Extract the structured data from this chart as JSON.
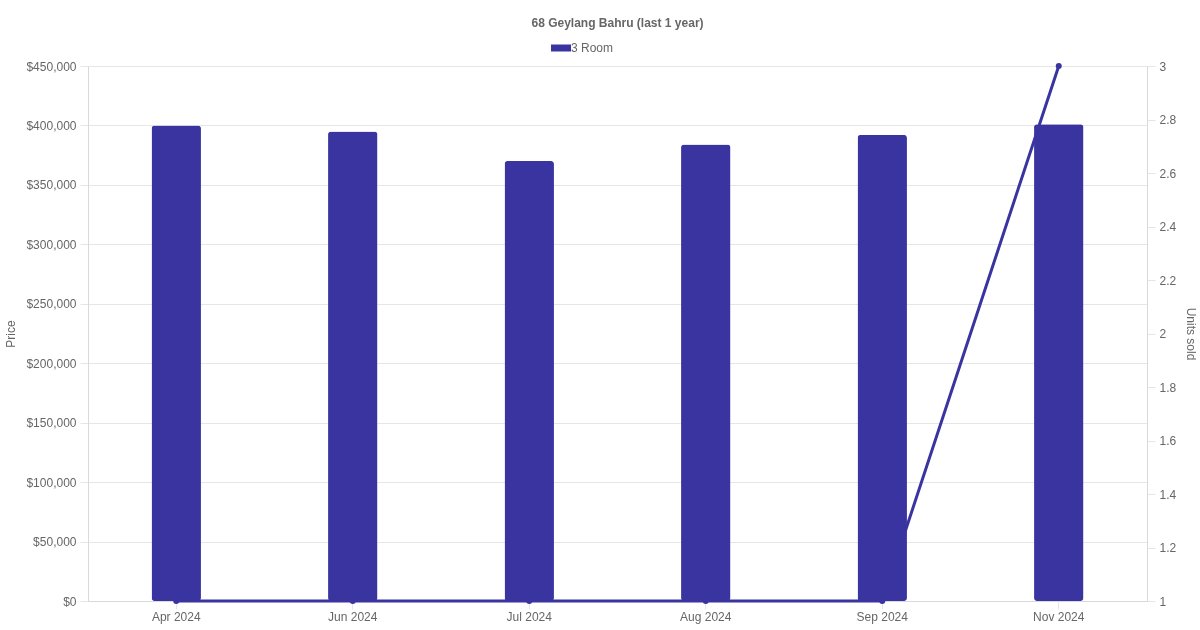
{
  "chart_data": {
    "type": "bar",
    "title": "68 Geylang Bahru (last 1 year)",
    "ylabel": "Price",
    "y2label": "Units sold",
    "categories": [
      "Apr 2024",
      "Jun 2024",
      "Jul 2024",
      "Aug 2024",
      "Sep 2024",
      "Nov 2024"
    ],
    "series": [
      {
        "name": "3 Room",
        "color": "#3934a0",
        "values": [
          400000,
          395000,
          370000,
          384000,
          392000,
          401000
        ]
      },
      {
        "type": "line",
        "axis": "y2",
        "color": "#3934a0",
        "marker": "circle",
        "values": [
          1,
          1,
          1,
          1,
          1,
          3
        ]
      }
    ],
    "ylim": [
      0,
      450000
    ],
    "yticks": [
      {
        "value": 0,
        "label": "$0"
      },
      {
        "value": 50000,
        "label": "$50,000"
      },
      {
        "value": 100000,
        "label": "$100,000"
      },
      {
        "value": 150000,
        "label": "$150,000"
      },
      {
        "value": 200000,
        "label": "$200,000"
      },
      {
        "value": 250000,
        "label": "$250,000"
      },
      {
        "value": 300000,
        "label": "$300,000"
      },
      {
        "value": 350000,
        "label": "$350,000"
      },
      {
        "value": 400000,
        "label": "$400,000"
      },
      {
        "value": 450000,
        "label": "$450,000"
      }
    ],
    "y2lim": [
      1,
      3
    ],
    "y2ticks": [
      1,
      1.2,
      1.4,
      1.6,
      1.8,
      2,
      2.2,
      2.4,
      2.6,
      2.8,
      3
    ],
    "grid": "y",
    "legend": "top"
  }
}
